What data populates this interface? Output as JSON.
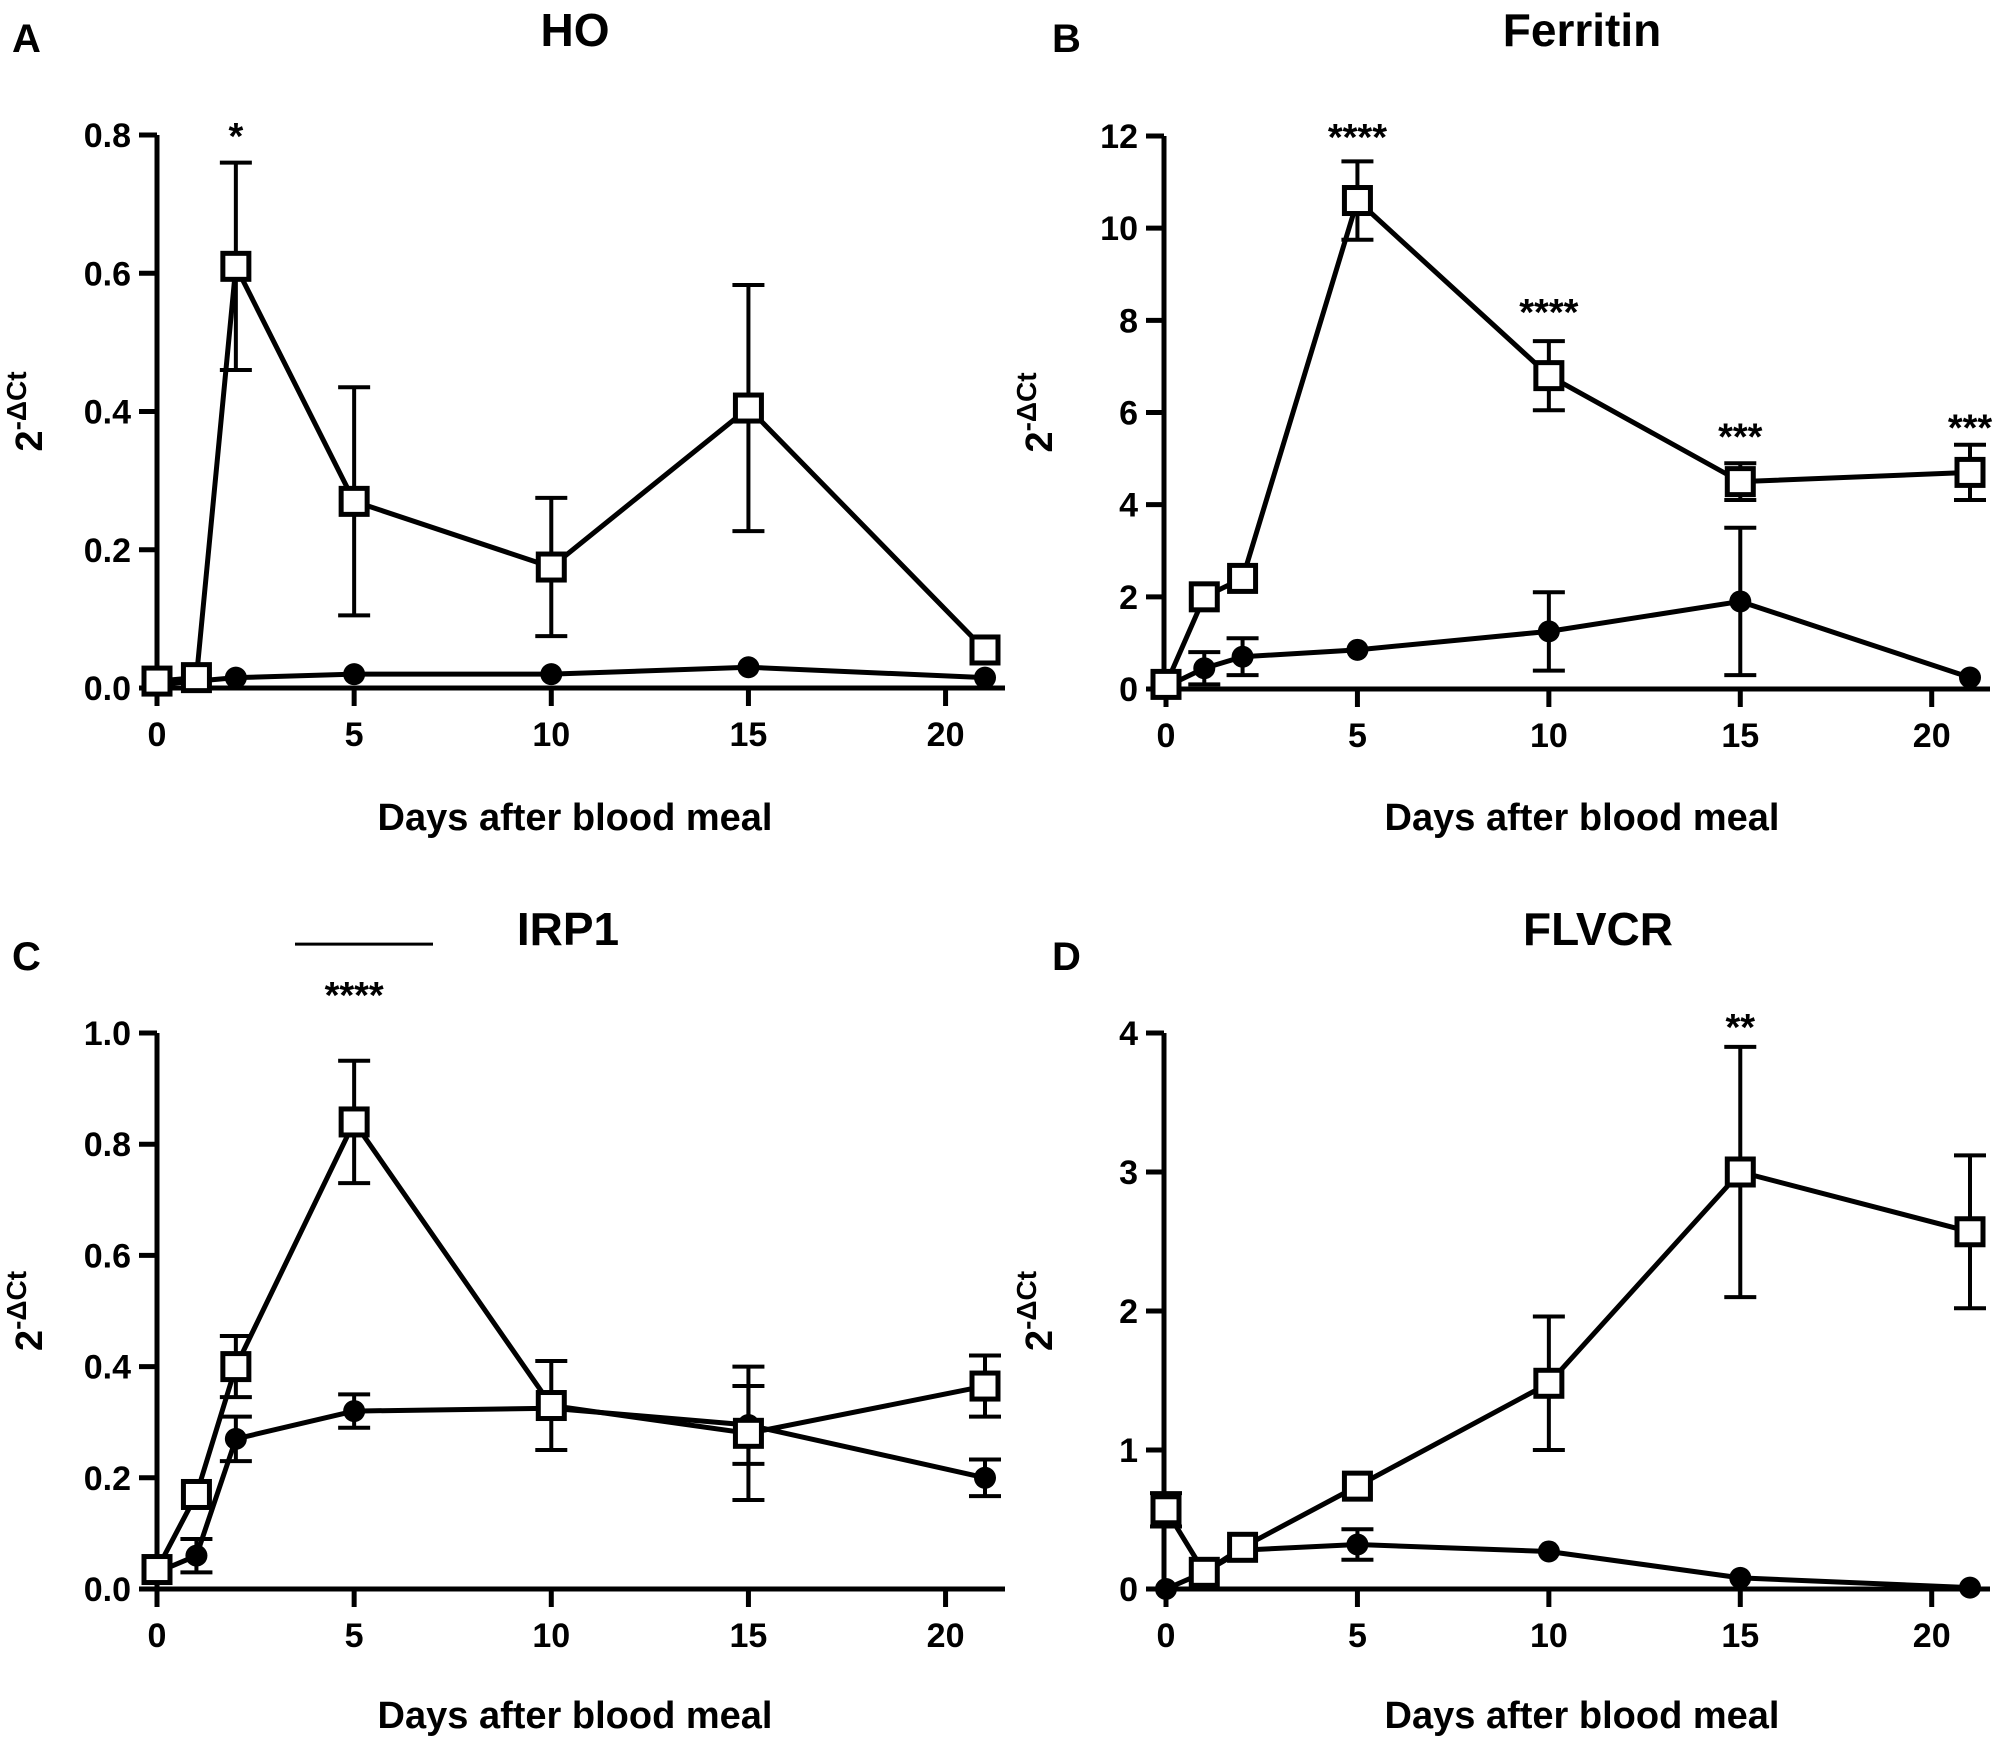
{
  "chart_data": [
    {
      "panel": "A",
      "type": "line",
      "title": "HO",
      "xlabel": "Days after blood meal",
      "ylabel_base": "2",
      "ylabel_exp": "-ΔCt",
      "xlim": [
        0,
        21
      ],
      "ylim": [
        0,
        0.8
      ],
      "xticks": [
        0,
        5,
        10,
        15,
        20
      ],
      "yticks": [
        0.0,
        0.2,
        0.4,
        0.6,
        0.8
      ],
      "ytick_labels": [
        "0.0",
        "0.2",
        "0.4",
        "0.6",
        "0.8"
      ],
      "series": [
        {
          "name": "open squares",
          "marker": "square-open",
          "points": [
            {
              "x": 0,
              "y": 0.01,
              "err": 0
            },
            {
              "x": 1,
              "y": 0.015,
              "err": 0
            },
            {
              "x": 2,
              "y": 0.61,
              "err": 0.15
            },
            {
              "x": 5,
              "y": 0.27,
              "err": 0.165
            },
            {
              "x": 10,
              "y": 0.175,
              "err": 0.1
            },
            {
              "x": 15,
              "y": 0.405,
              "err": 0.178
            },
            {
              "x": 21,
              "y": 0.055,
              "err": 0
            }
          ]
        },
        {
          "name": "filled circles",
          "marker": "circle-filled",
          "points": [
            {
              "x": 0,
              "y": 0.005,
              "err": 0
            },
            {
              "x": 1,
              "y": 0.01,
              "err": 0
            },
            {
              "x": 2,
              "y": 0.015,
              "err": 0
            },
            {
              "x": 5,
              "y": 0.02,
              "err": 0
            },
            {
              "x": 10,
              "y": 0.02,
              "err": 0
            },
            {
              "x": 15,
              "y": 0.03,
              "err": 0
            },
            {
              "x": 21,
              "y": 0.015,
              "err": 0
            }
          ]
        }
      ],
      "annotations": [
        {
          "x": 2,
          "y": 0.8,
          "text": "*"
        }
      ]
    },
    {
      "panel": "B",
      "type": "line",
      "title": "Ferritin",
      "xlabel": "Days after blood meal",
      "ylabel_base": "2",
      "ylabel_exp": "-ΔCt",
      "xlim": [
        0,
        21
      ],
      "ylim": [
        0,
        12
      ],
      "xticks": [
        0,
        5,
        10,
        15,
        20
      ],
      "yticks": [
        0,
        2,
        4,
        6,
        8,
        10,
        12
      ],
      "ytick_labels": [
        "0",
        "2",
        "4",
        "6",
        "8",
        "10",
        "12"
      ],
      "series": [
        {
          "name": "open squares",
          "marker": "square-open",
          "points": [
            {
              "x": 0,
              "y": 0.1,
              "err": 0
            },
            {
              "x": 1,
              "y": 2.0,
              "err": 0
            },
            {
              "x": 2,
              "y": 2.4,
              "err": 0
            },
            {
              "x": 5,
              "y": 10.6,
              "err": 0.85
            },
            {
              "x": 10,
              "y": 6.8,
              "err": 0.75
            },
            {
              "x": 15,
              "y": 4.5,
              "err": 0.4
            },
            {
              "x": 21,
              "y": 4.7,
              "err": 0.6
            }
          ]
        },
        {
          "name": "filled circles",
          "marker": "circle-filled",
          "points": [
            {
              "x": 0,
              "y": 0.05,
              "err": 0
            },
            {
              "x": 1,
              "y": 0.45,
              "err": 0.35
            },
            {
              "x": 2,
              "y": 0.7,
              "err": 0.4
            },
            {
              "x": 5,
              "y": 0.85,
              "err": 0
            },
            {
              "x": 10,
              "y": 1.25,
              "err": 0.85
            },
            {
              "x": 15,
              "y": 1.9,
              "err": 1.6
            },
            {
              "x": 21,
              "y": 0.25,
              "err": 0
            }
          ]
        }
      ],
      "annotations": [
        {
          "x": 5,
          "y": 12,
          "text": "****"
        },
        {
          "x": 10,
          "y": 8.2,
          "text": "****"
        },
        {
          "x": 15,
          "y": 5.5,
          "text": "***"
        },
        {
          "x": 21,
          "y": 5.7,
          "text": "***"
        }
      ]
    },
    {
      "panel": "C",
      "type": "line",
      "title": "IRP1",
      "xlabel": "Days after blood meal",
      "ylabel_base": "2",
      "ylabel_exp": "-ΔCt",
      "xlim": [
        0,
        21
      ],
      "ylim": [
        0,
        1.0
      ],
      "xticks": [
        0,
        5,
        10,
        15,
        20
      ],
      "yticks": [
        0.0,
        0.2,
        0.4,
        0.6,
        0.8,
        1.0
      ],
      "ytick_labels": [
        "0.0",
        "0.2",
        "0.4",
        "0.6",
        "0.8",
        "1.0"
      ],
      "series": [
        {
          "name": "open squares",
          "marker": "square-open",
          "points": [
            {
              "x": 0,
              "y": 0.035,
              "err": 0
            },
            {
              "x": 1,
              "y": 0.17,
              "err": 0
            },
            {
              "x": 2,
              "y": 0.4,
              "err": 0.055
            },
            {
              "x": 5,
              "y": 0.84,
              "err": 0.11
            },
            {
              "x": 10,
              "y": 0.33,
              "err": 0.08
            },
            {
              "x": 15,
              "y": 0.28,
              "err": 0.12
            },
            {
              "x": 21,
              "y": 0.365,
              "err": 0.055
            }
          ]
        },
        {
          "name": "filled circles",
          "marker": "circle-filled",
          "points": [
            {
              "x": 0,
              "y": 0.03,
              "err": 0
            },
            {
              "x": 1,
              "y": 0.06,
              "err": 0.03
            },
            {
              "x": 2,
              "y": 0.27,
              "err": 0.04
            },
            {
              "x": 5,
              "y": 0.32,
              "err": 0.03
            },
            {
              "x": 10,
              "y": 0.325,
              "err": 0
            },
            {
              "x": 15,
              "y": 0.295,
              "err": 0.07
            },
            {
              "x": 21,
              "y": 0.2,
              "err": 0.033
            }
          ]
        }
      ],
      "annotations": [
        {
          "x": 5,
          "y": 1.07,
          "text": "****",
          "bar_x": [
            3.5,
            7
          ]
        }
      ]
    },
    {
      "panel": "D",
      "type": "line",
      "title": "FLVCR",
      "xlabel": "Days after blood meal",
      "ylabel_base": "2",
      "ylabel_exp": "-ΔCt",
      "xlim": [
        0,
        21
      ],
      "ylim": [
        0,
        4
      ],
      "xticks": [
        0,
        5,
        10,
        15,
        20
      ],
      "yticks": [
        0,
        1,
        2,
        3,
        4
      ],
      "ytick_labels": [
        "0",
        "1",
        "2",
        "3",
        "4"
      ],
      "series": [
        {
          "name": "open squares",
          "marker": "square-open",
          "points": [
            {
              "x": 0,
              "y": 0.57,
              "err": 0.12
            },
            {
              "x": 1,
              "y": 0.12,
              "err": 0
            },
            {
              "x": 2,
              "y": 0.3,
              "err": 0
            },
            {
              "x": 5,
              "y": 0.74,
              "err": 0
            },
            {
              "x": 10,
              "y": 1.48,
              "err": 0.48
            },
            {
              "x": 15,
              "y": 3.0,
              "err": 0.9
            },
            {
              "x": 21,
              "y": 2.57,
              "err": 0.55
            }
          ]
        },
        {
          "name": "filled circles",
          "marker": "circle-filled",
          "points": [
            {
              "x": 0,
              "y": 0.0,
              "err": 0
            },
            {
              "x": 1,
              "y": 0.12,
              "err": 0
            },
            {
              "x": 2,
              "y": 0.28,
              "err": 0
            },
            {
              "x": 5,
              "y": 0.32,
              "err": 0.11
            },
            {
              "x": 10,
              "y": 0.27,
              "err": 0
            },
            {
              "x": 15,
              "y": 0.08,
              "err": 0
            },
            {
              "x": 21,
              "y": 0.01,
              "err": 0
            }
          ]
        }
      ],
      "annotations": [
        {
          "x": 15,
          "y": 4.05,
          "text": "**"
        }
      ]
    }
  ]
}
